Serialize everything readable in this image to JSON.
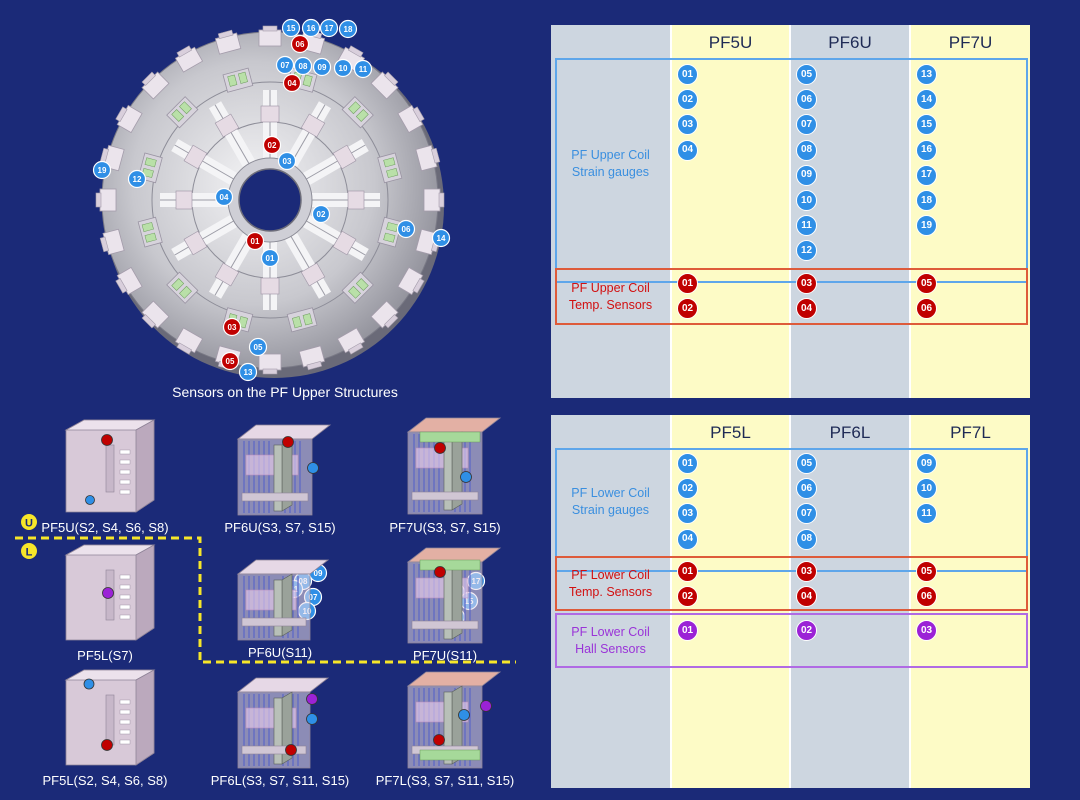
{
  "upper_structure": {
    "caption": "Sensors on the PF Upper Structures",
    "strain_gauges": [
      "01",
      "02",
      "03",
      "04",
      "05",
      "06",
      "07",
      "08",
      "09",
      "10",
      "11",
      "12",
      "13",
      "14",
      "15",
      "16",
      "17",
      "18",
      "19"
    ],
    "temp_sensors": [
      "01",
      "02",
      "03",
      "04",
      "05",
      "06"
    ]
  },
  "components": [
    {
      "caption": "PF5U(S2, S4, S6, S8)"
    },
    {
      "caption": "PF6U(S3, S7, S15)"
    },
    {
      "caption": "PF7U(S3, S7, S15)"
    },
    {
      "caption": "PF5L(S7)"
    },
    {
      "caption": "PF6U(S11)",
      "badges": [
        "08",
        "09",
        "11",
        "07",
        "10"
      ]
    },
    {
      "caption": "PF7U(S11)",
      "badges": [
        "17",
        "16",
        "15",
        "18"
      ]
    },
    {
      "caption": "PF5L(S2, S4, S6, S8)"
    },
    {
      "caption": "PF6L(S3, S7, S11, S15)"
    },
    {
      "caption": "PF7L(S3, S7, S11, S15)"
    }
  ],
  "markers": {
    "upper": "U",
    "lower": "L"
  },
  "upper_table": {
    "headers": [
      "PF5U",
      "PF6U",
      "PF7U"
    ],
    "groups": [
      {
        "label": "PF Upper Coil\nStrain gauges",
        "color": "blue",
        "columns": [
          [
            "01",
            "02",
            "03",
            "04"
          ],
          [
            "05",
            "06",
            "07",
            "08",
            "09",
            "10",
            "11",
            "12"
          ],
          [
            "13",
            "14",
            "15",
            "16",
            "17",
            "18",
            "19"
          ]
        ]
      },
      {
        "label": "PF Upper Coil\nTemp. Sensors",
        "color": "red",
        "columns": [
          [
            "01",
            "02"
          ],
          [
            "03",
            "04"
          ],
          [
            "05",
            "06"
          ]
        ]
      }
    ]
  },
  "lower_table": {
    "headers": [
      "PF5L",
      "PF6L",
      "PF7L"
    ],
    "groups": [
      {
        "label": "PF Lower Coil\nStrain gauges",
        "color": "blue",
        "columns": [
          [
            "01",
            "02",
            "03",
            "04"
          ],
          [
            "05",
            "06",
            "07",
            "08"
          ],
          [
            "09",
            "10",
            "11"
          ]
        ]
      },
      {
        "label": "PF Lower Coil\nTemp. Sensors",
        "color": "red",
        "columns": [
          [
            "01",
            "02"
          ],
          [
            "03",
            "04"
          ],
          [
            "05",
            "06"
          ]
        ]
      },
      {
        "label": "PF Lower Coil\nHall Sensors",
        "color": "purple",
        "columns": [
          [
            "01"
          ],
          [
            "02"
          ],
          [
            "03"
          ]
        ]
      }
    ]
  },
  "colors": {
    "background": "#1b2a78",
    "strain_gauge": "#2f8fe6",
    "temp_sensor": "#c00000",
    "hall_sensor": "#9b22d6",
    "divider": "#f7e629"
  }
}
